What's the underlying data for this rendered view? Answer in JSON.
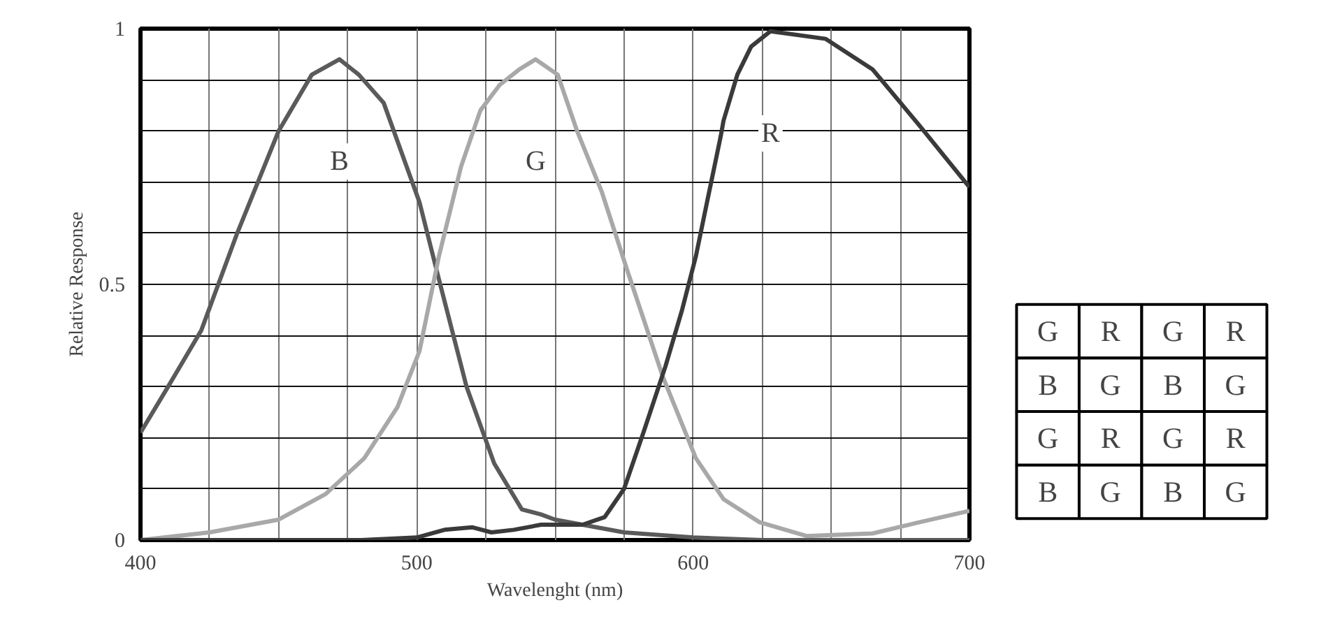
{
  "chart_data": [
    {
      "type": "line",
      "xlabel": "Wavelenght (nm)",
      "ylabel": "Relative Response",
      "xlim": [
        400,
        700
      ],
      "ylim": [
        0,
        1
      ],
      "xticks": [
        400,
        {
          "value": 425,
          "label": null
        },
        {
          "value": 450,
          "label": null
        },
        {
          "value": 475,
          "label": null
        },
        500,
        {
          "value": 525,
          "label": null
        },
        {
          "value": 550,
          "label": null
        },
        {
          "value": 575,
          "label": null
        },
        600,
        {
          "value": 625,
          "label": null
        },
        {
          "value": 650,
          "label": null
        },
        {
          "value": 675,
          "label": null
        },
        700
      ],
      "yticks": [
        0,
        {
          "value": 0.1,
          "label": null
        },
        {
          "value": 0.2,
          "label": null
        },
        {
          "value": 0.3,
          "label": null
        },
        {
          "value": 0.4,
          "label": null
        },
        0.5,
        {
          "value": 0.6,
          "label": null
        },
        {
          "value": 0.7,
          "label": null
        },
        {
          "value": 0.8,
          "label": null
        },
        {
          "value": 0.9,
          "label": null
        },
        1
      ],
      "grid": true,
      "marker": "none",
      "line_style": "solid",
      "series": [
        {
          "name": "B",
          "color": "#5a5a5a",
          "x": [
            400,
            410,
            422,
            435,
            450,
            462,
            472,
            479,
            488,
            501,
            508,
            518,
            528,
            538,
            545,
            550,
            575,
            600,
            625,
            650,
            700
          ],
          "values": [
            0.21,
            0.3,
            0.41,
            0.6,
            0.8,
            0.91,
            0.94,
            0.91,
            0.855,
            0.66,
            0.51,
            0.3,
            0.15,
            0.06,
            0.05,
            0.04,
            0.015,
            0.005,
            0,
            0,
            0
          ]
        },
        {
          "name": "G",
          "color": "#a8a8a8",
          "x": [
            400,
            425,
            450,
            467,
            481,
            493,
            501,
            508,
            516,
            523,
            530,
            537,
            543,
            551,
            558,
            567,
            576,
            589,
            601,
            611,
            624,
            641,
            665,
            682,
            700
          ],
          "values": [
            0,
            0.015,
            0.04,
            0.09,
            0.16,
            0.26,
            0.37,
            0.555,
            0.73,
            0.84,
            0.89,
            0.92,
            0.94,
            0.91,
            0.8,
            0.68,
            0.53,
            0.32,
            0.16,
            0.08,
            0.035,
            0.008,
            0.013,
            0.035,
            0.057
          ]
        },
        {
          "name": "R",
          "color": "#3a3a3a",
          "x": [
            400,
            480,
            500,
            510,
            520,
            527,
            535,
            545,
            555,
            560,
            568,
            575,
            582,
            590,
            596,
            601,
            605,
            610,
            611,
            616,
            621,
            628,
            648,
            665,
            682,
            700
          ],
          "values": [
            0,
            0,
            0.005,
            0.02,
            0.025,
            0.015,
            0.02,
            0.03,
            0.03,
            0.03,
            0.045,
            0.1,
            0.21,
            0.34,
            0.45,
            0.555,
            0.66,
            0.79,
            0.82,
            0.91,
            0.965,
            0.995,
            0.98,
            0.92,
            0.81,
            0.69
          ]
        }
      ]
    },
    {
      "type": "other",
      "annotations": [
        "G",
        "R",
        "G",
        "R",
        "B",
        "G",
        "B",
        "G",
        "G",
        "R",
        "G",
        "R",
        "B",
        "G",
        "B",
        "G"
      ]
    }
  ]
}
